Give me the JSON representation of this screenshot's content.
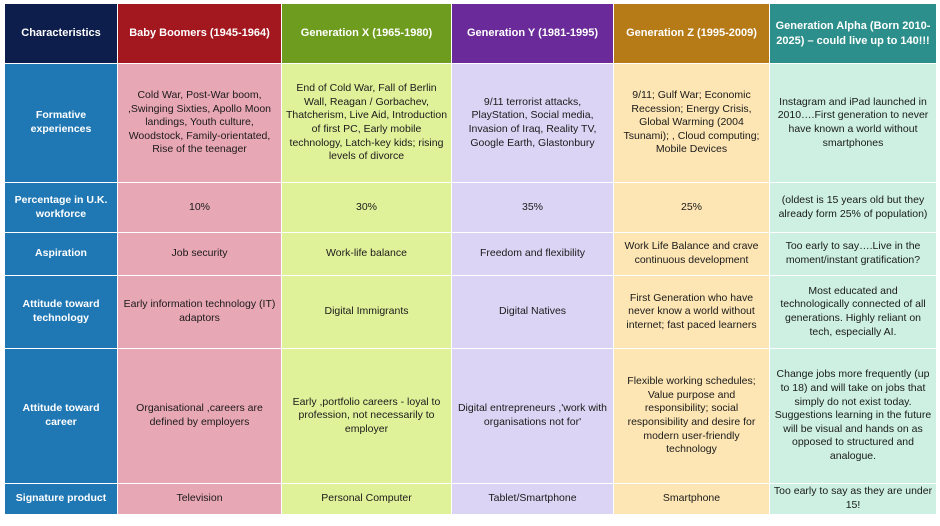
{
  "headers": [
    "Characteristics",
    "Baby Boomers (1945-1964)",
    "Generation X (1965-1980)",
    "Generation Y (1981-1995)",
    "Generation Z (1995-2009)",
    "Generation Alpha (Born 2010-2025) – could live up to 140!!!"
  ],
  "rows": [
    {
      "label": "Formative experiences",
      "cells": [
        "Cold War, Post-War boom, ,Swinging Sixties, Apollo Moon landings, Youth culture, Woodstock, Family-orientated, Rise of the teenager",
        "End of Cold War, Fall of Berlin Wall, Reagan / Gorbachev, Thatcherism, Live Aid, Introduction of first PC, Early mobile technology, Latch-key kids; rising levels of divorce",
        "9/11 terrorist attacks, PlayStation, Social media, Invasion of Iraq, Reality TV, Google Earth, Glastonbury",
        "9/11; Gulf War; Economic Recession; Energy Crisis, Global Warming (2004 Tsunami); , Cloud computing; Mobile Devices",
        "Instagram and iPad launched in 2010….First generation to never have known a world without smartphones"
      ]
    },
    {
      "label": "Percentage in U.K. workforce",
      "cells": [
        "10%",
        "30%",
        "35%",
        "25%",
        "(oldest is 15 years old but they already form 25% of population)"
      ]
    },
    {
      "label": "Aspiration",
      "cells": [
        "Job security",
        "Work-life balance",
        "Freedom and flexibility",
        "Work Life Balance and crave continuous development",
        "Too early to say….Live in the moment/instant gratification?"
      ]
    },
    {
      "label": "Attitude toward technology",
      "cells": [
        "Early information technology (IT) adaptors",
        "Digital Immigrants",
        "Digital Natives",
        "First Generation who have never know a world without internet; fast paced learners",
        "Most educated and technologically connected of all generations.  Highly reliant on tech, especially AI."
      ]
    },
    {
      "label": "Attitude toward career",
      "cells": [
        "Organisational ,careers are defined by employers",
        "Early ,portfolio careers - loyal to profession, not necessarily to employer",
        "Digital entrepreneurs ,'work with organisations not for'",
        "Flexible working schedules; Value purpose and responsibility; social responsibility and desire for modern user-friendly technology",
        "Change jobs more frequently (up to 18) and will take on jobs that simply do not exist today. Suggestions learning in the future will be visual and hands on as opposed to structured and analogue."
      ]
    },
    {
      "label": "Signature product",
      "cells": [
        "Television",
        "Personal Computer",
        "Tablet/Smartphone",
        "Smartphone",
        "Too early to say as they are under 15!"
      ]
    }
  ],
  "colors": {
    "header_row": [
      "#0e1e4c",
      "#a3171f",
      "#6e9c1e",
      "#6b2a99",
      "#b67a16",
      "#2c8f8b"
    ],
    "row_label": "#1f78b4",
    "columns": [
      "#e8a7b4",
      "#dff29a",
      "#dcd4f4",
      "#fde6b4",
      "#cdf0e2"
    ]
  }
}
